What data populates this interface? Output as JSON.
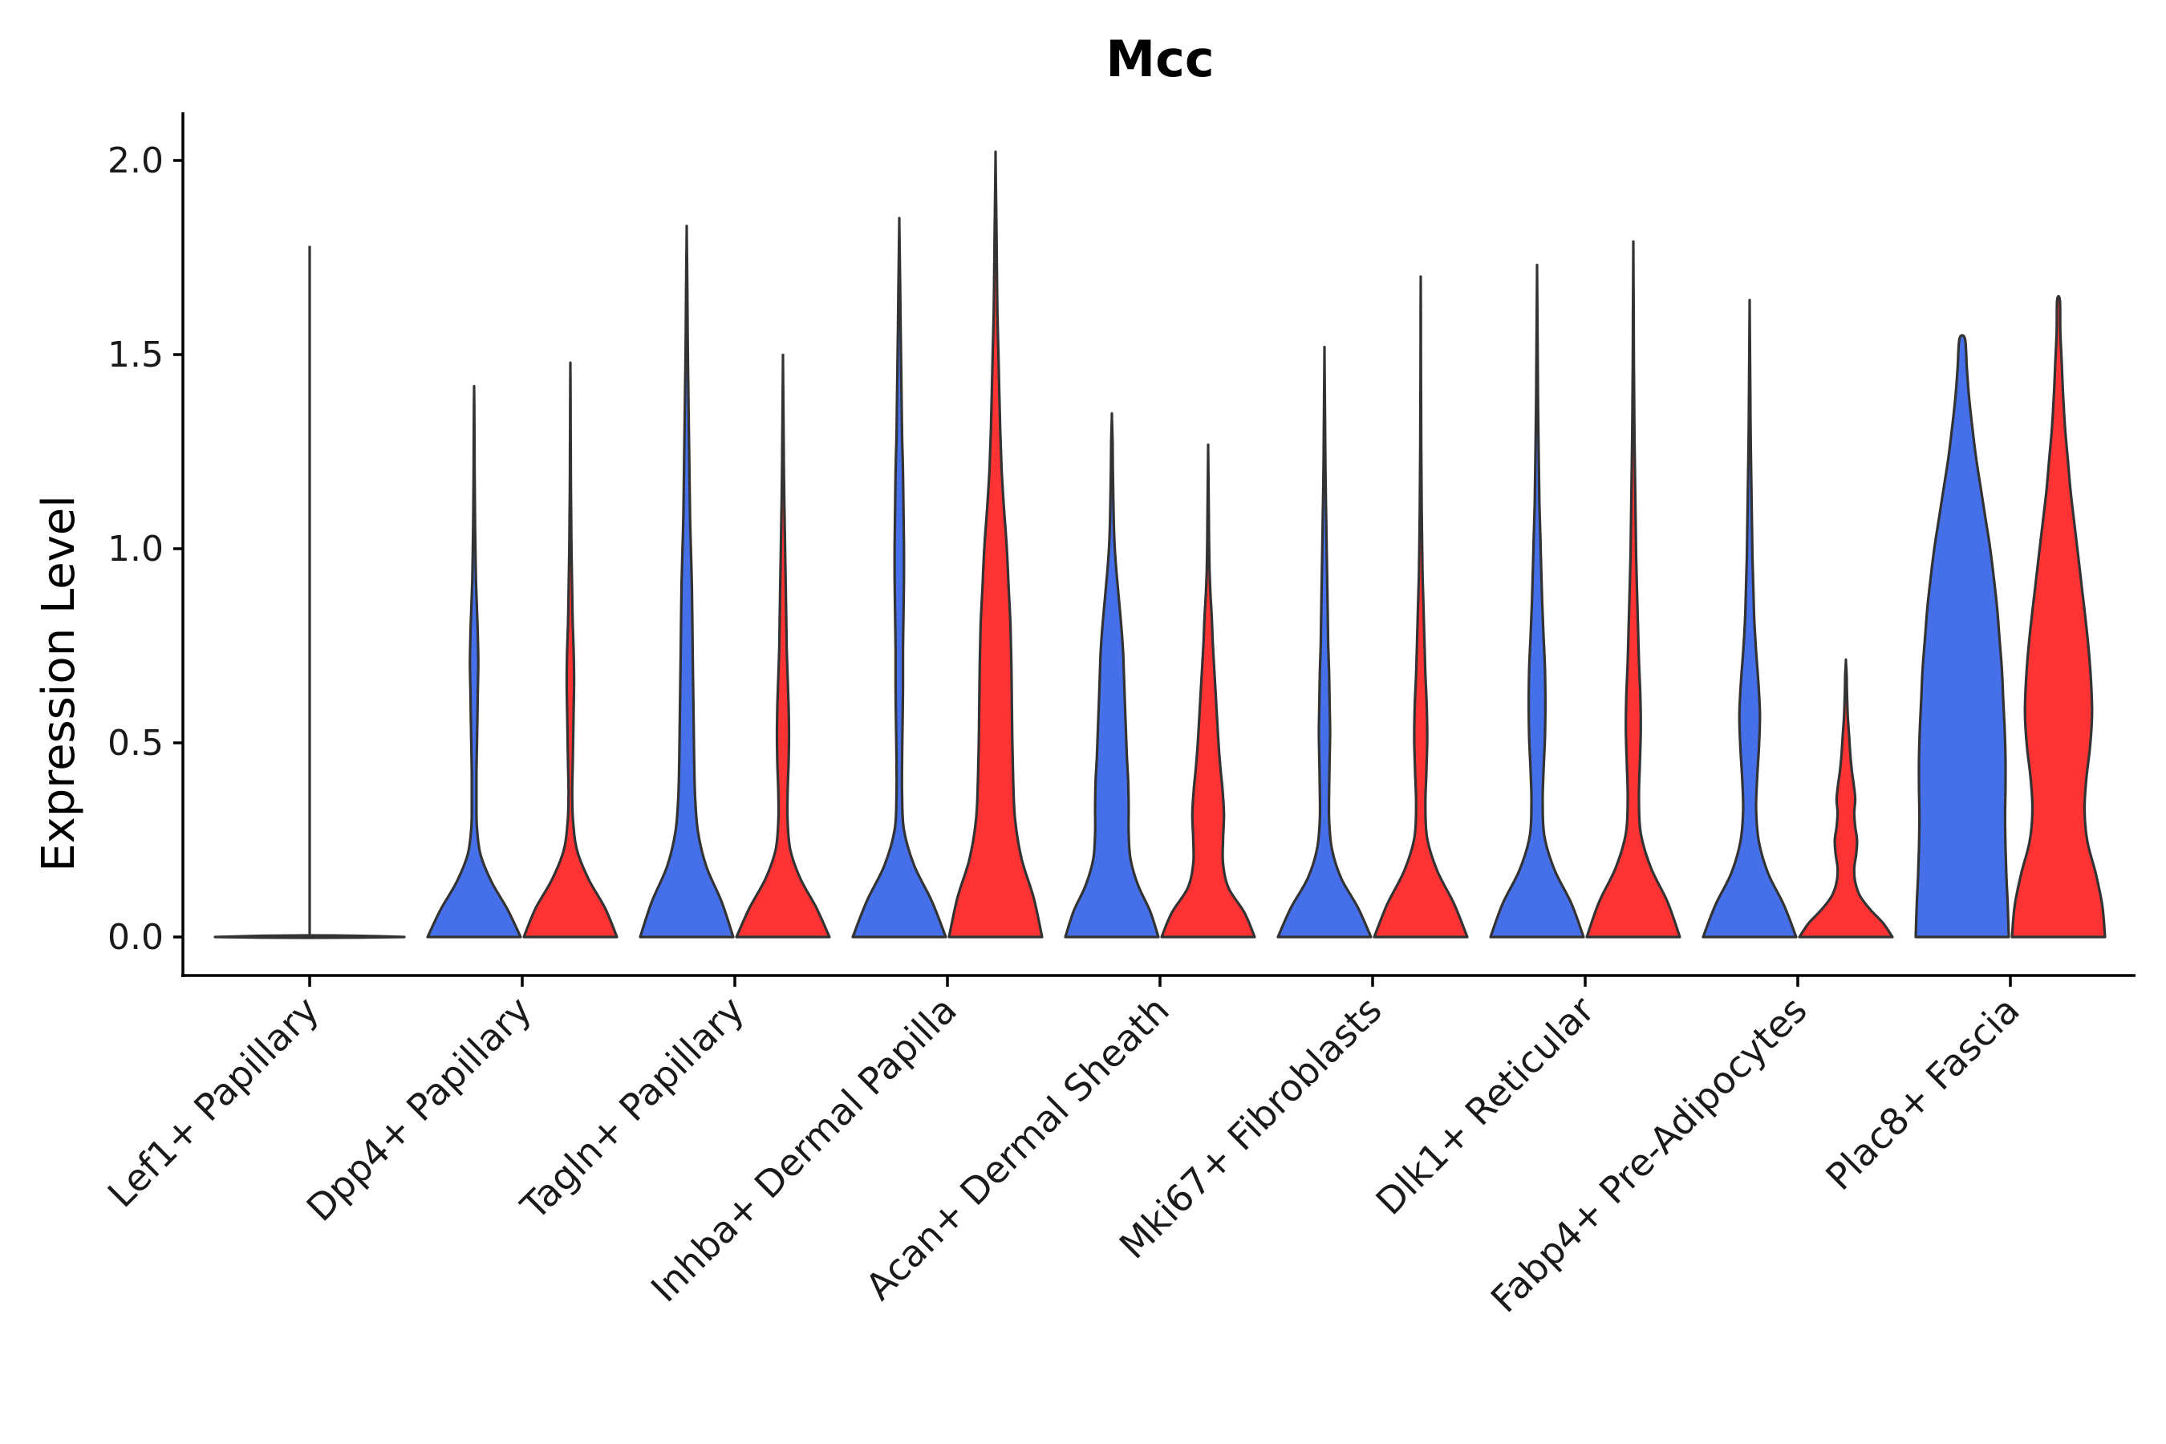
{
  "chart_data": {
    "type": "violin",
    "title": "Mcc",
    "xlabel": "",
    "ylabel": "Expression Level",
    "ylim": [
      -0.1,
      2.12
    ],
    "yticks": [
      "0.0",
      "0.5",
      "1.0",
      "1.5",
      "2.0"
    ],
    "ytick_values": [
      0.0,
      0.5,
      1.0,
      1.5,
      2.0
    ],
    "series_colors": [
      "#4570ea",
      "#ff3333"
    ],
    "neutral_color": "#d9d9d9",
    "density_grid": [
      0,
      0.05,
      0.1,
      0.15,
      0.2,
      0.25,
      0.3,
      0.35,
      0.4,
      0.45,
      0.5,
      0.55,
      0.6,
      0.65,
      0.7,
      0.75,
      0.8,
      0.85,
      0.9,
      0.95,
      1
    ],
    "categories": [
      {
        "label": "Lef1+ Papillary",
        "violins": [
          {
            "series": 0,
            "color": "#d9d9d9",
            "max": 1.78,
            "flat": true,
            "widths": []
          }
        ]
      },
      {
        "label": "Dpp4+ Papillary",
        "violins": [
          {
            "series": 0,
            "color": "#4570ea",
            "max": 1.41,
            "widths": [
              1.0,
              0.72,
              0.38,
              0.14,
              0.06,
              0.05,
              0.05,
              0.06,
              0.07,
              0.08,
              0.09,
              0.08,
              0.06,
              0.04,
              0.03,
              0.02,
              0.015,
              0.01,
              0.008,
              0.006,
              0.0
            ]
          },
          {
            "series": 1,
            "color": "#ff3333",
            "max": 1.47,
            "widths": [
              1.0,
              0.75,
              0.4,
              0.15,
              0.06,
              0.04,
              0.05,
              0.06,
              0.07,
              0.08,
              0.07,
              0.05,
              0.04,
              0.03,
              0.02,
              0.015,
              0.01,
              0.008,
              0.006,
              0.004,
              0.0
            ]
          }
        ]
      },
      {
        "label": "Tagln+ Papillary",
        "violins": [
          {
            "series": 0,
            "color": "#4570ea",
            "max": 1.82,
            "widths": [
              1.0,
              0.75,
              0.42,
              0.24,
              0.18,
              0.16,
              0.15,
              0.14,
              0.13,
              0.12,
              0.11,
              0.09,
              0.07,
              0.06,
              0.05,
              0.04,
              0.03,
              0.02,
              0.015,
              0.008,
              0.0
            ]
          },
          {
            "series": 1,
            "color": "#ff3333",
            "max": 1.49,
            "widths": [
              1.0,
              0.72,
              0.38,
              0.16,
              0.1,
              0.1,
              0.12,
              0.13,
              0.12,
              0.1,
              0.08,
              0.07,
              0.06,
              0.05,
              0.04,
              0.03,
              0.02,
              0.015,
              0.01,
              0.005,
              0.0
            ]
          }
        ]
      },
      {
        "label": "Inhba+ Dermal Papilla",
        "violins": [
          {
            "series": 0,
            "color": "#4570ea",
            "max": 1.84,
            "widths": [
              1.0,
              0.7,
              0.32,
              0.1,
              0.06,
              0.06,
              0.07,
              0.08,
              0.08,
              0.09,
              0.1,
              0.1,
              0.09,
              0.08,
              0.06,
              0.05,
              0.04,
              0.03,
              0.02,
              0.01,
              0.0
            ]
          },
          {
            "series": 1,
            "color": "#ff3333",
            "max": 2.01,
            "widths": [
              1.0,
              0.82,
              0.56,
              0.42,
              0.38,
              0.36,
              0.35,
              0.34,
              0.32,
              0.28,
              0.24,
              0.18,
              0.13,
              0.1,
              0.08,
              0.06,
              0.04,
              0.03,
              0.02,
              0.01,
              0.0
            ]
          }
        ]
      },
      {
        "label": "Acan+ Dermal Sheath",
        "violins": [
          {
            "series": 0,
            "color": "#4570ea",
            "max": 1.34,
            "widths": [
              1.0,
              0.82,
              0.56,
              0.4,
              0.36,
              0.36,
              0.35,
              0.32,
              0.3,
              0.28,
              0.26,
              0.24,
              0.2,
              0.15,
              0.1,
              0.06,
              0.04,
              0.03,
              0.02,
              0.015,
              0.0
            ]
          },
          {
            "series": 1,
            "color": "#ff3333",
            "max": 1.26,
            "widths": [
              1.0,
              0.78,
              0.44,
              0.32,
              0.32,
              0.34,
              0.31,
              0.26,
              0.22,
              0.19,
              0.16,
              0.13,
              0.1,
              0.08,
              0.05,
              0.03,
              0.02,
              0.015,
              0.01,
              0.005,
              0.0
            ]
          }
        ]
      },
      {
        "label": "Mki67+ Fibroblasts",
        "violins": [
          {
            "series": 0,
            "color": "#4570ea",
            "max": 1.51,
            "widths": [
              1.0,
              0.72,
              0.36,
              0.16,
              0.1,
              0.1,
              0.11,
              0.12,
              0.11,
              0.1,
              0.08,
              0.07,
              0.06,
              0.05,
              0.04,
              0.03,
              0.02,
              0.015,
              0.01,
              0.005,
              0.0
            ]
          },
          {
            "series": 1,
            "color": "#ff3333",
            "max": 1.69,
            "widths": [
              1.0,
              0.72,
              0.36,
              0.14,
              0.1,
              0.12,
              0.14,
              0.13,
              0.1,
              0.08,
              0.06,
              0.04,
              0.03,
              0.02,
              0.015,
              0.01,
              0.008,
              0.006,
              0.004,
              0.003,
              0.0
            ]
          }
        ]
      },
      {
        "label": "Dlk1+ Reticular",
        "violins": [
          {
            "series": 0,
            "color": "#4570ea",
            "max": 1.72,
            "widths": [
              1.0,
              0.74,
              0.38,
              0.16,
              0.12,
              0.14,
              0.17,
              0.18,
              0.17,
              0.14,
              0.11,
              0.09,
              0.07,
              0.05,
              0.04,
              0.03,
              0.02,
              0.015,
              0.01,
              0.005,
              0.0
            ]
          },
          {
            "series": 1,
            "color": "#ff3333",
            "max": 1.78,
            "widths": [
              1.0,
              0.74,
              0.38,
              0.16,
              0.12,
              0.14,
              0.16,
              0.15,
              0.12,
              0.1,
              0.08,
              0.06,
              0.05,
              0.04,
              0.03,
              0.02,
              0.015,
              0.01,
              0.008,
              0.004,
              0.0
            ]
          }
        ]
      },
      {
        "label": "Fabp4+ Pre-Adipocytes",
        "violins": [
          {
            "series": 0,
            "color": "#4570ea",
            "max": 1.63,
            "widths": [
              1.0,
              0.74,
              0.4,
              0.2,
              0.14,
              0.16,
              0.2,
              0.22,
              0.19,
              0.14,
              0.1,
              0.08,
              0.06,
              0.05,
              0.04,
              0.03,
              0.02,
              0.015,
              0.01,
              0.005,
              0.0
            ]
          },
          {
            "series": 1,
            "color": "#ff3333",
            "max": 0.71,
            "widths": [
              1.0,
              0.8,
              0.52,
              0.3,
              0.2,
              0.18,
              0.22,
              0.24,
              0.2,
              0.18,
              0.2,
              0.17,
              0.13,
              0.1,
              0.08,
              0.06,
              0.04,
              0.03,
              0.02,
              0.015,
              0.0
            ]
          }
        ]
      },
      {
        "label": "Plac8+ Fascia",
        "violins": [
          {
            "series": 0,
            "color": "#4570ea",
            "max": 1.54,
            "widths": [
              1.0,
              0.98,
              0.95,
              0.93,
              0.92,
              0.93,
              0.93,
              0.91,
              0.88,
              0.85,
              0.8,
              0.75,
              0.68,
              0.6,
              0.5,
              0.4,
              0.3,
              0.22,
              0.15,
              0.1,
              0.06
            ]
          },
          {
            "series": 1,
            "color": "#ff3333",
            "max": 1.64,
            "widths": [
              1.0,
              0.94,
              0.8,
              0.62,
              0.56,
              0.6,
              0.68,
              0.72,
              0.7,
              0.65,
              0.58,
              0.5,
              0.42,
              0.34,
              0.26,
              0.2,
              0.14,
              0.1,
              0.07,
              0.04,
              0.03
            ]
          }
        ]
      }
    ]
  }
}
